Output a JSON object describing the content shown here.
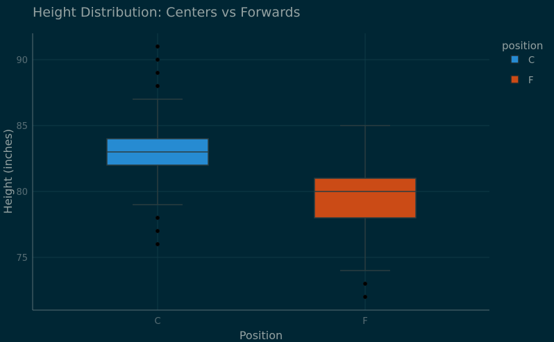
{
  "chart_data": {
    "type": "box",
    "title": "Height Distribution: Centers vs Forwards",
    "xlabel": "Position",
    "ylabel": "Height (inches)",
    "categories": [
      "C",
      "F"
    ],
    "ylim": [
      71,
      92
    ],
    "yticks": [
      75,
      80,
      85,
      90
    ],
    "grid": true,
    "legend": {
      "title": "position",
      "placement": "top-right",
      "entries": [
        "C",
        "F"
      ]
    },
    "series": [
      {
        "name": "C",
        "color": "#268bd2",
        "q1": 82,
        "median": 83,
        "q3": 84,
        "whisker_low": 79,
        "whisker_high": 87,
        "outliers": [
          76,
          77,
          78,
          88,
          89,
          90,
          91
        ]
      },
      {
        "name": "F",
        "color": "#cb4b16",
        "q1": 78,
        "median": 80,
        "q3": 81,
        "whisker_low": 74,
        "whisker_high": 85,
        "outliers": [
          72,
          73
        ]
      }
    ]
  },
  "colors": {
    "background": "#002634",
    "grid": "#0f3a46",
    "axis_line": "#586e75",
    "box_line": "#2b3d40",
    "outlier": "#000000"
  }
}
